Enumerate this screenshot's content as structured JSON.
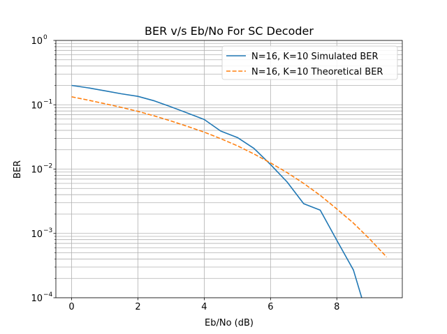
{
  "chart_data": {
    "type": "line",
    "title": "BER v/s Eb/No For SC Decoder",
    "xlabel": "Eb/No (dB)",
    "ylabel": "BER",
    "xlim": [
      -0.475,
      9.975
    ],
    "ylim": [
      0.0001,
      1
    ],
    "yscale": "log",
    "grid": true,
    "legend_position": "top-right",
    "x_ticks": [
      {
        "value": 0,
        "label": "0"
      },
      {
        "value": 2,
        "label": "2"
      },
      {
        "value": 4,
        "label": "4"
      },
      {
        "value": 6,
        "label": "6"
      },
      {
        "value": 8,
        "label": "8"
      }
    ],
    "y_ticks": [
      {
        "value": 0.0001,
        "base": "10",
        "exp": "−4"
      },
      {
        "value": 0.001,
        "base": "10",
        "exp": "−3"
      },
      {
        "value": 0.01,
        "base": "10",
        "exp": "−2"
      },
      {
        "value": 0.1,
        "base": "10",
        "exp": "−1"
      },
      {
        "value": 1,
        "base": "10",
        "exp": "0"
      }
    ],
    "series": [
      {
        "name": "N=16, K=10 Simulated BER",
        "color": "#1f77b4",
        "dash": "solid",
        "x": [
          0,
          0.5,
          1,
          1.5,
          2,
          2.5,
          3,
          3.5,
          4,
          4.5,
          5,
          5.5,
          6,
          6.5,
          7,
          7.5,
          8,
          8.5,
          8.75
        ],
        "y": [
          0.2,
          0.183,
          0.165,
          0.148,
          0.135,
          0.115,
          0.093,
          0.074,
          0.059,
          0.039,
          0.031,
          0.021,
          0.0118,
          0.0063,
          0.0029,
          0.0023,
          0.00078,
          0.00027,
          0.0001
        ]
      },
      {
        "name": "N=16, K=10 Theoretical BER",
        "color": "#ff7f0e",
        "dash": "dashed",
        "x": [
          0,
          0.5,
          1,
          1.5,
          2,
          2.5,
          3,
          3.5,
          4,
          4.5,
          5,
          5.5,
          6,
          6.5,
          7,
          7.5,
          8,
          8.5,
          9,
          9.5
        ],
        "y": [
          0.133,
          0.118,
          0.104,
          0.091,
          0.079,
          0.067,
          0.056,
          0.046,
          0.0375,
          0.0297,
          0.023,
          0.0172,
          0.0125,
          0.0088,
          0.006,
          0.0039,
          0.0024,
          0.00145,
          0.00081,
          0.00043
        ]
      }
    ]
  }
}
